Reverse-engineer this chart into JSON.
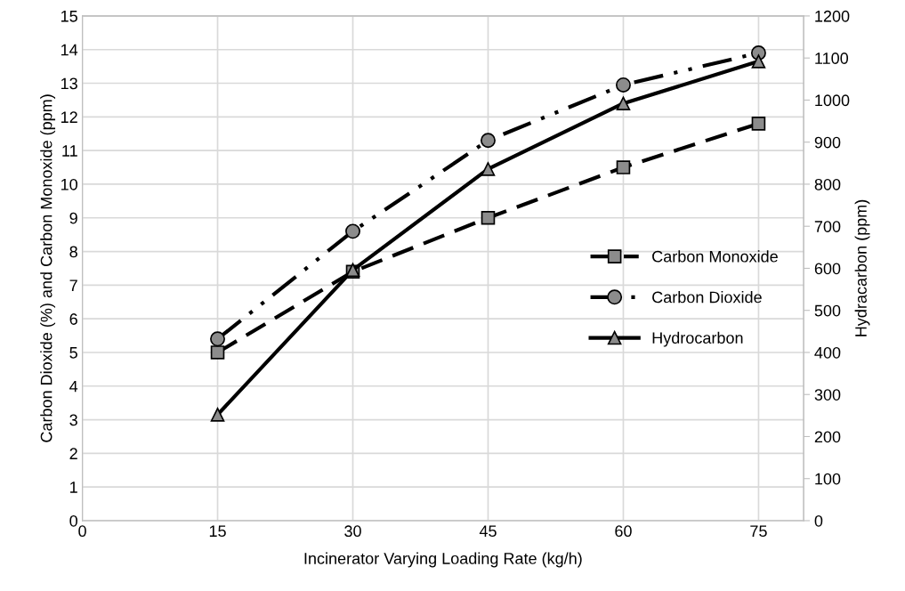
{
  "chart_data": {
    "type": "line",
    "xlabel": "Incinerator Varying Loading Rate (kg/h)",
    "ylabel": "Carbon Dioxide (%) and Carbon Monoxide (ppm)",
    "y2label": "Hydracarbon (ppm)",
    "x": [
      15,
      30,
      45,
      60,
      75
    ],
    "xlim": [
      0,
      80
    ],
    "xticks": [
      0,
      15,
      30,
      45,
      60,
      75
    ],
    "ylim": [
      0,
      15
    ],
    "yticks": [
      0,
      1,
      2,
      3,
      4,
      5,
      6,
      7,
      8,
      9,
      10,
      11,
      12,
      13,
      14,
      15
    ],
    "y2lim": [
      0,
      1200
    ],
    "y2ticks": [
      0,
      100,
      200,
      300,
      400,
      500,
      600,
      700,
      800,
      900,
      1000,
      1100,
      1200
    ],
    "grid": true,
    "legend": "right",
    "series": [
      {
        "name": "Carbon Monoxide",
        "color": "#000000",
        "values": [
          5.0,
          7.4,
          9.0,
          10.5,
          11.8
        ],
        "marker": "square",
        "line_style": "dashed"
      },
      {
        "name": "Carbon Dioxide",
        "color": "#000000",
        "values": [
          5.4,
          8.6,
          11.3,
          12.95,
          13.9
        ],
        "marker": "circle",
        "line_style": "dashdotdot"
      },
      {
        "name": "Hydrocarbon",
        "color": "#000000",
        "values": [
          252,
          596,
          836,
          992,
          1092
        ],
        "marker": "triangle",
        "line_style": "solid",
        "axis": "y2"
      }
    ]
  }
}
